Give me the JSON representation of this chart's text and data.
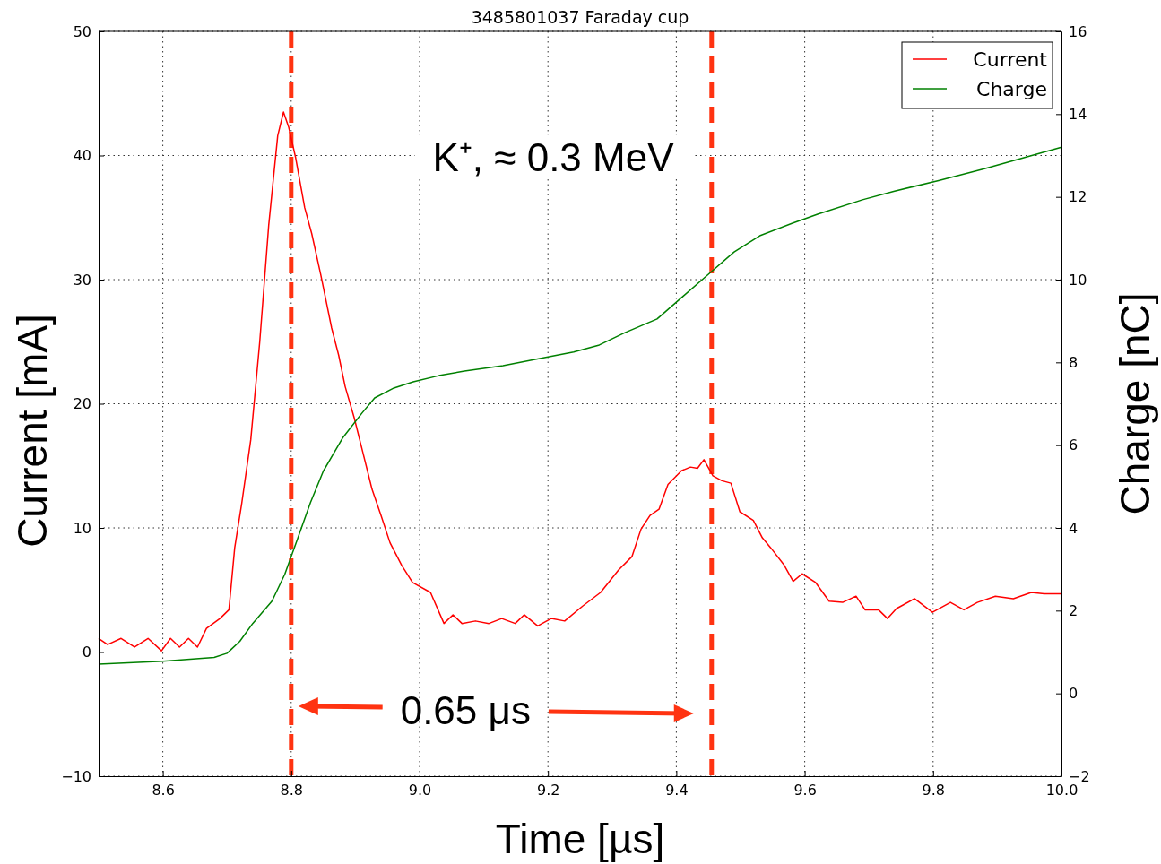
{
  "chart_data": {
    "type": "line",
    "title": "3485801037 Faraday cup",
    "xlabel": "Time [µs]",
    "ylabel": "Current [mA]",
    "y2label": "Charge [nC]",
    "xlim": [
      8.5,
      10.0
    ],
    "xticks": [
      8.6,
      8.8,
      {
        "value": 9,
        "label": "9.0"
      },
      9.2,
      9.4,
      9.6,
      9.8,
      {
        "value": 10,
        "label": "10.0"
      }
    ],
    "ylim": [
      -10,
      50
    ],
    "yticks": [
      {
        "value": -10,
        "label": "−10"
      },
      0,
      10,
      20,
      30,
      40,
      50
    ],
    "y2lim": [
      -2,
      16
    ],
    "y2ticks": [
      {
        "value": -2,
        "label": "−2"
      },
      0,
      2,
      4,
      6,
      8,
      10,
      12,
      14,
      16
    ],
    "grid": true,
    "legend": "top right",
    "line_style": "solid",
    "series": [
      {
        "name": "Current",
        "color": "#ff0000",
        "x": [
          8.5,
          8.514,
          8.535,
          8.556,
          8.577,
          8.598,
          8.612,
          8.626,
          8.64,
          8.654,
          8.668,
          8.689,
          8.703,
          8.712,
          8.723,
          8.737,
          8.751,
          8.765,
          8.779,
          8.788,
          8.796,
          8.807,
          8.821,
          8.832,
          8.846,
          8.863,
          8.874,
          8.884,
          8.898,
          8.912,
          8.926,
          8.94,
          8.954,
          8.972,
          8.989,
          9.017,
          9.038,
          9.052,
          9.066,
          9.087,
          9.108,
          9.128,
          9.149,
          9.163,
          9.184,
          9.205,
          9.226,
          9.254,
          9.282,
          9.31,
          9.331,
          9.345,
          9.359,
          9.373,
          9.387,
          9.408,
          9.422,
          9.433,
          9.443,
          9.457,
          9.471,
          9.485,
          9.499,
          9.52,
          9.534,
          9.547,
          9.568,
          9.582,
          9.596,
          9.617,
          9.638,
          9.659,
          9.68,
          9.694,
          9.715,
          9.729,
          9.743,
          9.771,
          9.799,
          9.827,
          9.848,
          9.869,
          9.897,
          9.925,
          9.953,
          9.973,
          10.0
        ],
        "values": [
          1.1,
          0.6,
          1.1,
          0.4,
          1.1,
          0.1,
          1.1,
          0.4,
          1.1,
          0.4,
          1.9,
          2.7,
          3.4,
          8.4,
          12.0,
          17.1,
          25.0,
          34.4,
          41.6,
          43.5,
          42.3,
          39.8,
          35.8,
          33.7,
          30.4,
          26.1,
          23.9,
          21.4,
          18.9,
          16.0,
          13.1,
          11.0,
          8.8,
          7.0,
          5.6,
          4.8,
          2.3,
          3.0,
          2.3,
          2.5,
          2.3,
          2.7,
          2.3,
          3.0,
          2.1,
          2.7,
          2.5,
          3.7,
          4.8,
          6.6,
          7.7,
          9.9,
          11.0,
          11.5,
          13.5,
          14.6,
          14.9,
          14.8,
          15.5,
          14.2,
          13.8,
          13.6,
          11.3,
          10.6,
          9.2,
          8.4,
          7.0,
          5.7,
          6.3,
          5.6,
          4.1,
          4.0,
          4.5,
          3.4,
          3.4,
          2.7,
          3.5,
          4.3,
          3.2,
          4.0,
          3.4,
          4.0,
          4.5,
          4.3,
          4.8,
          4.7,
          4.7
        ]
      },
      {
        "name": "Charge",
        "color": "#008000",
        "axis": "y2",
        "x": [
          8.5,
          8.6,
          8.68,
          8.7,
          8.72,
          8.74,
          8.77,
          8.79,
          8.81,
          8.83,
          8.85,
          8.88,
          8.91,
          8.93,
          8.96,
          8.99,
          9.03,
          9.07,
          9.13,
          9.18,
          9.24,
          9.28,
          9.32,
          9.37,
          9.41,
          9.45,
          9.49,
          9.53,
          9.58,
          9.62,
          9.69,
          9.74,
          9.81,
          9.88,
          9.94,
          10.0
        ],
        "values": [
          0.71,
          0.78,
          0.87,
          0.97,
          1.26,
          1.69,
          2.23,
          2.88,
          3.74,
          4.61,
          5.37,
          6.17,
          6.77,
          7.14,
          7.38,
          7.53,
          7.68,
          7.79,
          7.92,
          8.07,
          8.25,
          8.42,
          8.72,
          9.05,
          9.59,
          10.13,
          10.67,
          11.06,
          11.36,
          11.58,
          11.93,
          12.14,
          12.4,
          12.68,
          12.94,
          13.2
        ]
      }
    ],
    "ref_lines": [
      {
        "axis": "x",
        "value": 8.8,
        "color": "#ff3311",
        "line_style": "dashed"
      },
      {
        "axis": "x",
        "value": 9.455,
        "color": "#ff3311",
        "line_style": "dashed"
      }
    ],
    "annotations": [
      "K⁺, ≈ 0.3 MeV",
      "0.65 μs"
    ]
  }
}
